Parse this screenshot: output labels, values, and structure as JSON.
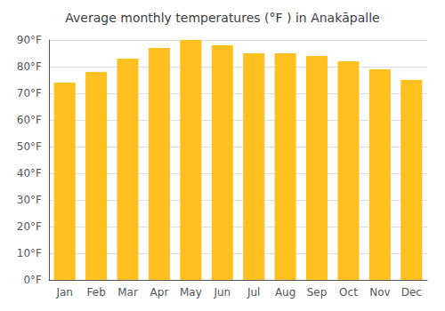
{
  "chart_data": {
    "type": "bar",
    "title": "Average monthly temperatures (°F ) in Anakāpalle",
    "categories": [
      "Jan",
      "Feb",
      "Mar",
      "Apr",
      "May",
      "Jun",
      "Jul",
      "Aug",
      "Sep",
      "Oct",
      "Nov",
      "Dec"
    ],
    "values": [
      74,
      78,
      83,
      87,
      90,
      88,
      85,
      85,
      84,
      82,
      79,
      75
    ],
    "color": "#FFC020",
    "ylim": [
      0,
      90
    ],
    "yticks": [
      {
        "value": 0,
        "label": "0°F"
      },
      {
        "value": 10,
        "label": "10°F"
      },
      {
        "value": 20,
        "label": "20°F"
      },
      {
        "value": 30,
        "label": "30°F"
      },
      {
        "value": 40,
        "label": "40°F"
      },
      {
        "value": 50,
        "label": "50°F"
      },
      {
        "value": 60,
        "label": "60°F"
      },
      {
        "value": 70,
        "label": "70°F"
      },
      {
        "value": 80,
        "label": "80°F"
      },
      {
        "value": 90,
        "label": "90°F"
      }
    ],
    "grid": true
  }
}
